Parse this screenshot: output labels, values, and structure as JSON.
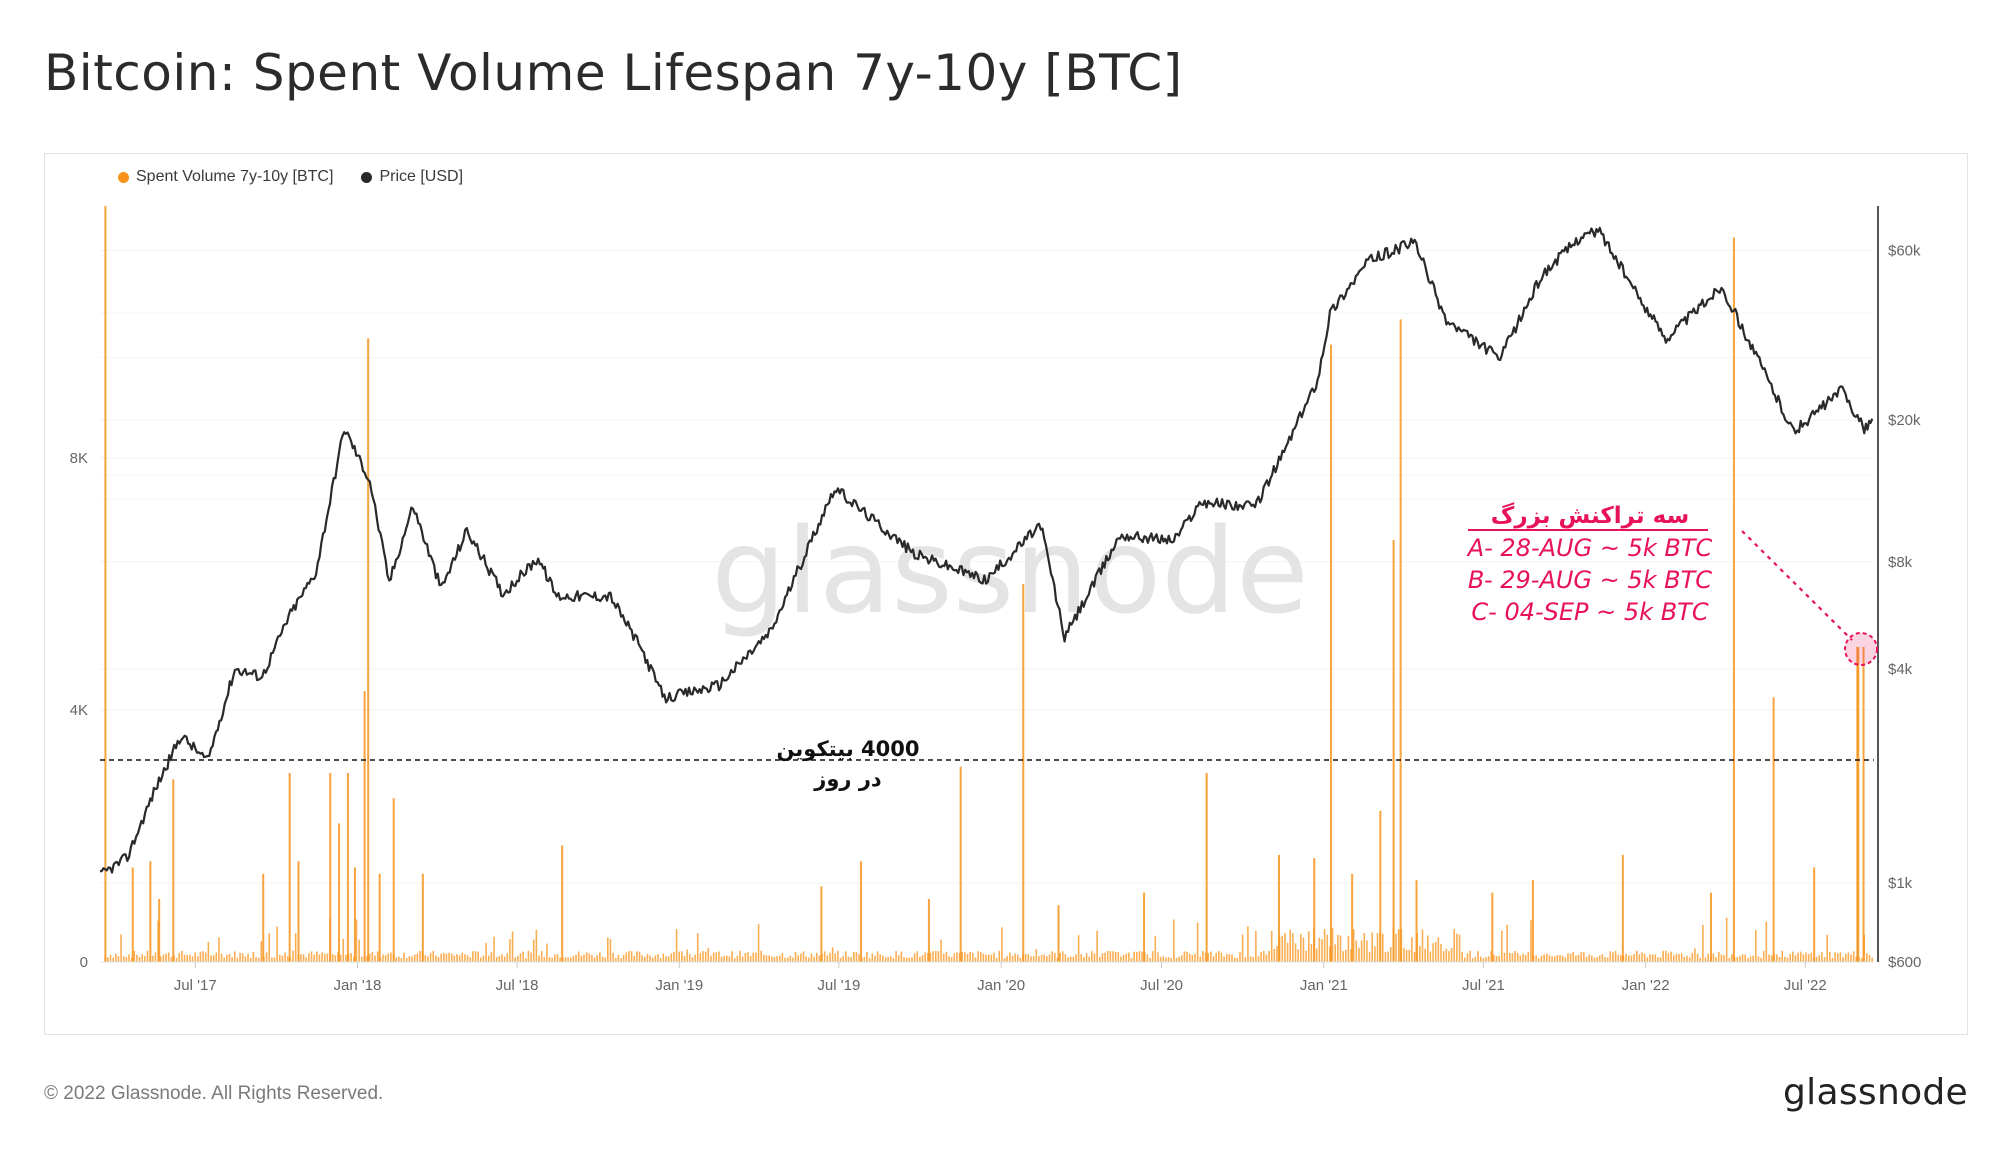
{
  "header": {
    "title": "Bitcoin: Spent Volume Lifespan 7y-10y [BTC]"
  },
  "legend": {
    "items": [
      {
        "label": "Spent Volume 7y-10y [BTC]",
        "color": "#f7931a"
      },
      {
        "label": "Price [USD]",
        "color": "#2a2a2a"
      }
    ]
  },
  "watermark": "glassnode",
  "footer": {
    "copyright": "© 2022 Glassnode. All Rights Reserved.",
    "brand": "glassnode"
  },
  "chart_data": {
    "type": "bar",
    "x": [
      "2017-03",
      "2017-07",
      "2018-01",
      "2018-07",
      "2019-01",
      "2019-07",
      "2020-01",
      "2020-07",
      "2021-01",
      "2021-07",
      "2022-01",
      "2022-07",
      "2022-09"
    ],
    "xTicks": [
      "Jul '17",
      "Jan '18",
      "Jul '18",
      "Jan '19",
      "Jul '19",
      "Jan '20",
      "Jul '20",
      "Jan '21",
      "Jul '21",
      "Jan '22",
      "Jul '22"
    ],
    "yLeft": {
      "ticks": [
        "0",
        "4K",
        "8K"
      ],
      "max": 12000
    },
    "yRight": {
      "ticks": [
        "$600",
        "$1k",
        "$4k",
        "$8k",
        "$20k",
        "$60k"
      ],
      "scale": "log",
      "range": [
        600,
        80000
      ]
    },
    "series": [
      {
        "name": "Spent Volume 7y-10y [BTC]",
        "type": "bar",
        "color": "#f7931a",
        "points": [
          [
            "2017-03-20",
            12000
          ],
          [
            "2017-04-20",
            1500
          ],
          [
            "2017-05-10",
            1600
          ],
          [
            "2017-05-20",
            1000
          ],
          [
            "2017-06-05",
            2900
          ],
          [
            "2017-09-15",
            1400
          ],
          [
            "2017-10-15",
            3000
          ],
          [
            "2017-10-25",
            1600
          ],
          [
            "2017-11-30",
            3000
          ],
          [
            "2017-12-10",
            2200
          ],
          [
            "2017-12-20",
            3000
          ],
          [
            "2017-12-28",
            1500
          ],
          [
            "2018-01-08",
            4300
          ],
          [
            "2018-01-12",
            9900
          ],
          [
            "2018-02-10",
            2600
          ],
          [
            "2018-01-25",
            1400
          ],
          [
            "2018-03-15",
            1400
          ],
          [
            "2018-08-20",
            1850
          ],
          [
            "2019-06-10",
            1200
          ],
          [
            "2019-07-25",
            1600
          ],
          [
            "2019-10-10",
            1000
          ],
          [
            "2019-11-15",
            3100
          ],
          [
            "2020-01-25",
            6000
          ],
          [
            "2020-03-05",
            900
          ],
          [
            "2020-06-10",
            1100
          ],
          [
            "2020-08-20",
            3000
          ],
          [
            "2020-11-10",
            1700
          ],
          [
            "2020-12-20",
            1650
          ],
          [
            "2021-01-08",
            9800
          ],
          [
            "2021-02-01",
            1400
          ],
          [
            "2021-03-05",
            2400
          ],
          [
            "2021-03-20",
            6700
          ],
          [
            "2021-03-28",
            10200
          ],
          [
            "2021-04-15",
            1300
          ],
          [
            "2021-07-10",
            1100
          ],
          [
            "2021-08-25",
            1300
          ],
          [
            "2021-12-05",
            1700
          ],
          [
            "2022-03-15",
            1100
          ],
          [
            "2022-04-10",
            11500
          ],
          [
            "2022-05-25",
            4200
          ],
          [
            "2022-07-10",
            1500
          ],
          [
            "2022-08-28",
            5000
          ],
          [
            "2022-08-29",
            5000
          ],
          [
            "2022-09-04",
            5000
          ]
        ]
      },
      {
        "name": "Price [USD]",
        "type": "line",
        "color": "#2a2a2a",
        "points": [
          [
            "2017-03-15",
            1050
          ],
          [
            "2017-04-15",
            1180
          ],
          [
            "2017-05-15",
            1800
          ],
          [
            "2017-06-15",
            2600
          ],
          [
            "2017-07-15",
            2200
          ],
          [
            "2017-08-15",
            4000
          ],
          [
            "2017-09-15",
            3800
          ],
          [
            "2017-10-15",
            5600
          ],
          [
            "2017-11-15",
            7500
          ],
          [
            "2017-12-17",
            19000
          ],
          [
            "2018-01-15",
            13500
          ],
          [
            "2018-02-06",
            7000
          ],
          [
            "2018-03-05",
            11500
          ],
          [
            "2018-04-06",
            6700
          ],
          [
            "2018-05-05",
            9800
          ],
          [
            "2018-06-15",
            6500
          ],
          [
            "2018-07-25",
            8200
          ],
          [
            "2018-08-15",
            6400
          ],
          [
            "2018-10-15",
            6400
          ],
          [
            "2018-11-20",
            4500
          ],
          [
            "2018-12-15",
            3300
          ],
          [
            "2019-02-15",
            3600
          ],
          [
            "2019-04-15",
            5100
          ],
          [
            "2019-06-26",
            12900
          ],
          [
            "2019-08-15",
            10200
          ],
          [
            "2019-09-25",
            8400
          ],
          [
            "2019-12-15",
            7100
          ],
          [
            "2020-02-15",
            10200
          ],
          [
            "2020-03-13",
            4900
          ],
          [
            "2020-05-15",
            9500
          ],
          [
            "2020-07-15",
            9200
          ],
          [
            "2020-08-15",
            11800
          ],
          [
            "2020-10-15",
            11400
          ],
          [
            "2020-11-15",
            16000
          ],
          [
            "2020-12-25",
            26000
          ],
          [
            "2021-01-08",
            40000
          ],
          [
            "2021-02-20",
            56000
          ],
          [
            "2021-04-14",
            63500
          ],
          [
            "2021-05-20",
            38000
          ],
          [
            "2021-07-20",
            29800
          ],
          [
            "2021-09-05",
            51000
          ],
          [
            "2021-10-20",
            66000
          ],
          [
            "2021-11-10",
            68000
          ],
          [
            "2021-12-20",
            46000
          ],
          [
            "2022-01-24",
            34000
          ],
          [
            "2022-03-28",
            47500
          ],
          [
            "2022-05-12",
            28500
          ],
          [
            "2022-06-18",
            18500
          ],
          [
            "2022-08-12",
            24400
          ],
          [
            "2022-09-06",
            18800
          ],
          [
            "2022-09-15",
            20200
          ]
        ]
      }
    ],
    "annotations": {
      "threshold": {
        "value": 4000,
        "label_line1": "4000 بیتکوین",
        "label_line2": "در روز"
      },
      "callout_title": "سه تراکنش بزرگ",
      "callout_lines": [
        "A- 28-AUG ~ 5k BTC",
        "B- 29-AUG ~ 5k BTC",
        "C- 04-SEP ~ 5k BTC"
      ],
      "highlight_color": "#e8125c"
    }
  }
}
